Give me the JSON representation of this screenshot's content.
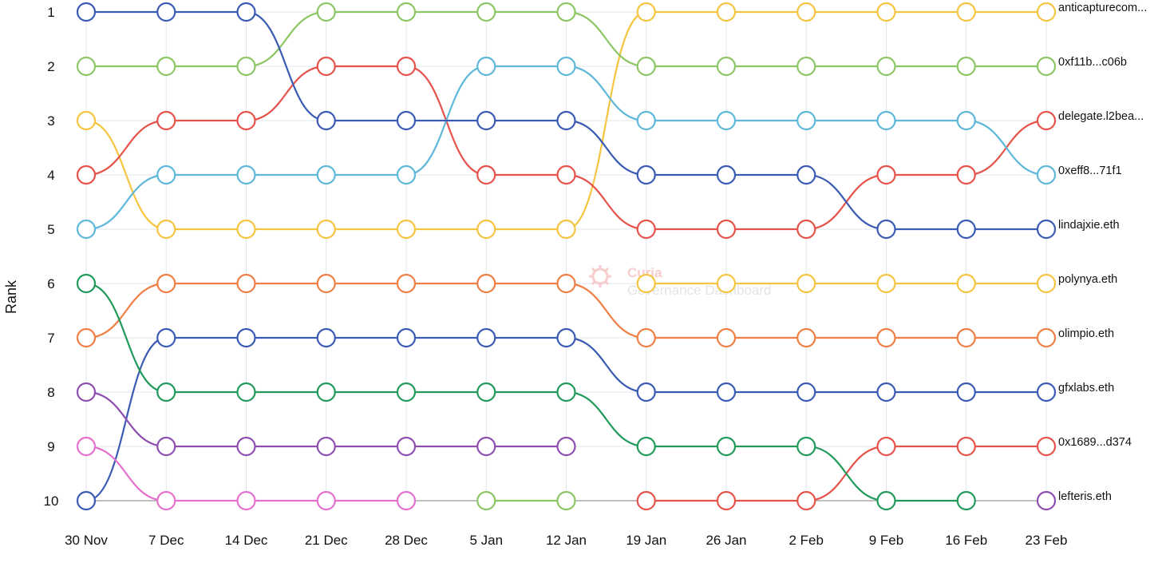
{
  "chart_data": {
    "type": "bump",
    "ylabel": "Rank",
    "xlabel": "",
    "title": "",
    "watermark": {
      "line1": "Curia",
      "line2": "Governance Dashboard"
    },
    "x": [
      "30 Nov",
      "7 Dec",
      "14 Dec",
      "21 Dec",
      "28 Dec",
      "5 Jan",
      "12 Jan",
      "19 Jan",
      "26 Jan",
      "2 Feb",
      "9 Feb",
      "16 Feb",
      "23 Feb"
    ],
    "y_ticks": [
      "1",
      "2",
      "3",
      "4",
      "5",
      "6",
      "7",
      "8",
      "9",
      "10"
    ],
    "ylim": [
      1,
      10
    ],
    "grid": true,
    "series": [
      {
        "name": "anticapturecom...",
        "color": "#f5c542",
        "ranks": [
          3,
          5,
          5,
          5,
          5,
          5,
          5,
          1,
          1,
          1,
          1,
          1,
          1
        ],
        "end_label": "anticapturecom..."
      },
      {
        "name": "0xf11b...c06b",
        "color": "#8cc665",
        "ranks": [
          2,
          2,
          2,
          1,
          1,
          1,
          1,
          2,
          2,
          2,
          2,
          2,
          2
        ],
        "end_label": "0xf11b...c06b"
      },
      {
        "name": "delegate.l2bea...",
        "color": "#e5534b",
        "ranks": [
          4,
          3,
          3,
          2,
          2,
          4,
          4,
          5,
          5,
          5,
          4,
          4,
          3
        ],
        "end_label": "delegate.l2bea..."
      },
      {
        "name": "0xeff8...71f1",
        "color": "#5fb8d9",
        "ranks": [
          5,
          4,
          4,
          4,
          4,
          2,
          2,
          3,
          3,
          3,
          3,
          3,
          4
        ],
        "end_label": "0xeff8...71f1"
      },
      {
        "name": "lindajxie.eth",
        "color": "#3a5bb3",
        "ranks": [
          1,
          1,
          1,
          3,
          3,
          3,
          3,
          4,
          4,
          4,
          5,
          5,
          5
        ],
        "end_label": "lindajxie.eth"
      },
      {
        "name": "polynya.eth",
        "color": "#f5c542",
        "ranks": [
          null,
          null,
          null,
          null,
          null,
          null,
          null,
          6,
          6,
          6,
          6,
          6,
          6
        ],
        "end_label": "polynya.eth"
      },
      {
        "name": "olimpio.eth",
        "color": "#ef7f45",
        "ranks": [
          7,
          6,
          6,
          6,
          6,
          6,
          6,
          7,
          7,
          7,
          7,
          7,
          7
        ],
        "end_label": "olimpio.eth"
      },
      {
        "name": "gfxlabs.eth",
        "color": "#3a5bb3",
        "ranks": [
          10,
          7,
          7,
          7,
          7,
          7,
          7,
          8,
          8,
          8,
          8,
          8,
          8
        ],
        "end_label": "gfxlabs.eth"
      },
      {
        "name": "0x1689...d374",
        "color": "#e5534b",
        "ranks": [
          null,
          null,
          null,
          null,
          null,
          null,
          null,
          10,
          10,
          10,
          9,
          9,
          9
        ],
        "end_label": "0x1689...d374"
      },
      {
        "name": "lefteris.eth",
        "color": "#8e4fb0",
        "ranks": [
          8,
          9,
          9,
          9,
          9,
          9,
          9,
          null,
          null,
          null,
          null,
          null,
          10
        ],
        "end_label": "lefteris.eth"
      },
      {
        "name": "",
        "color": "#219a5c",
        "ranks": [
          6,
          8,
          8,
          8,
          8,
          8,
          8,
          9,
          9,
          9,
          10,
          10,
          null
        ],
        "end_label": ""
      },
      {
        "name": "",
        "color": "#e571cf",
        "ranks": [
          9,
          10,
          10,
          10,
          10,
          null,
          null,
          null,
          null,
          null,
          null,
          null,
          null
        ],
        "end_label": ""
      },
      {
        "name": "",
        "color": "#8cc665",
        "ranks": [
          null,
          null,
          null,
          null,
          null,
          10,
          10,
          null,
          null,
          null,
          null,
          null,
          null
        ],
        "end_label": ""
      }
    ],
    "baseline": {
      "rank": 10,
      "color": "#999999"
    }
  }
}
